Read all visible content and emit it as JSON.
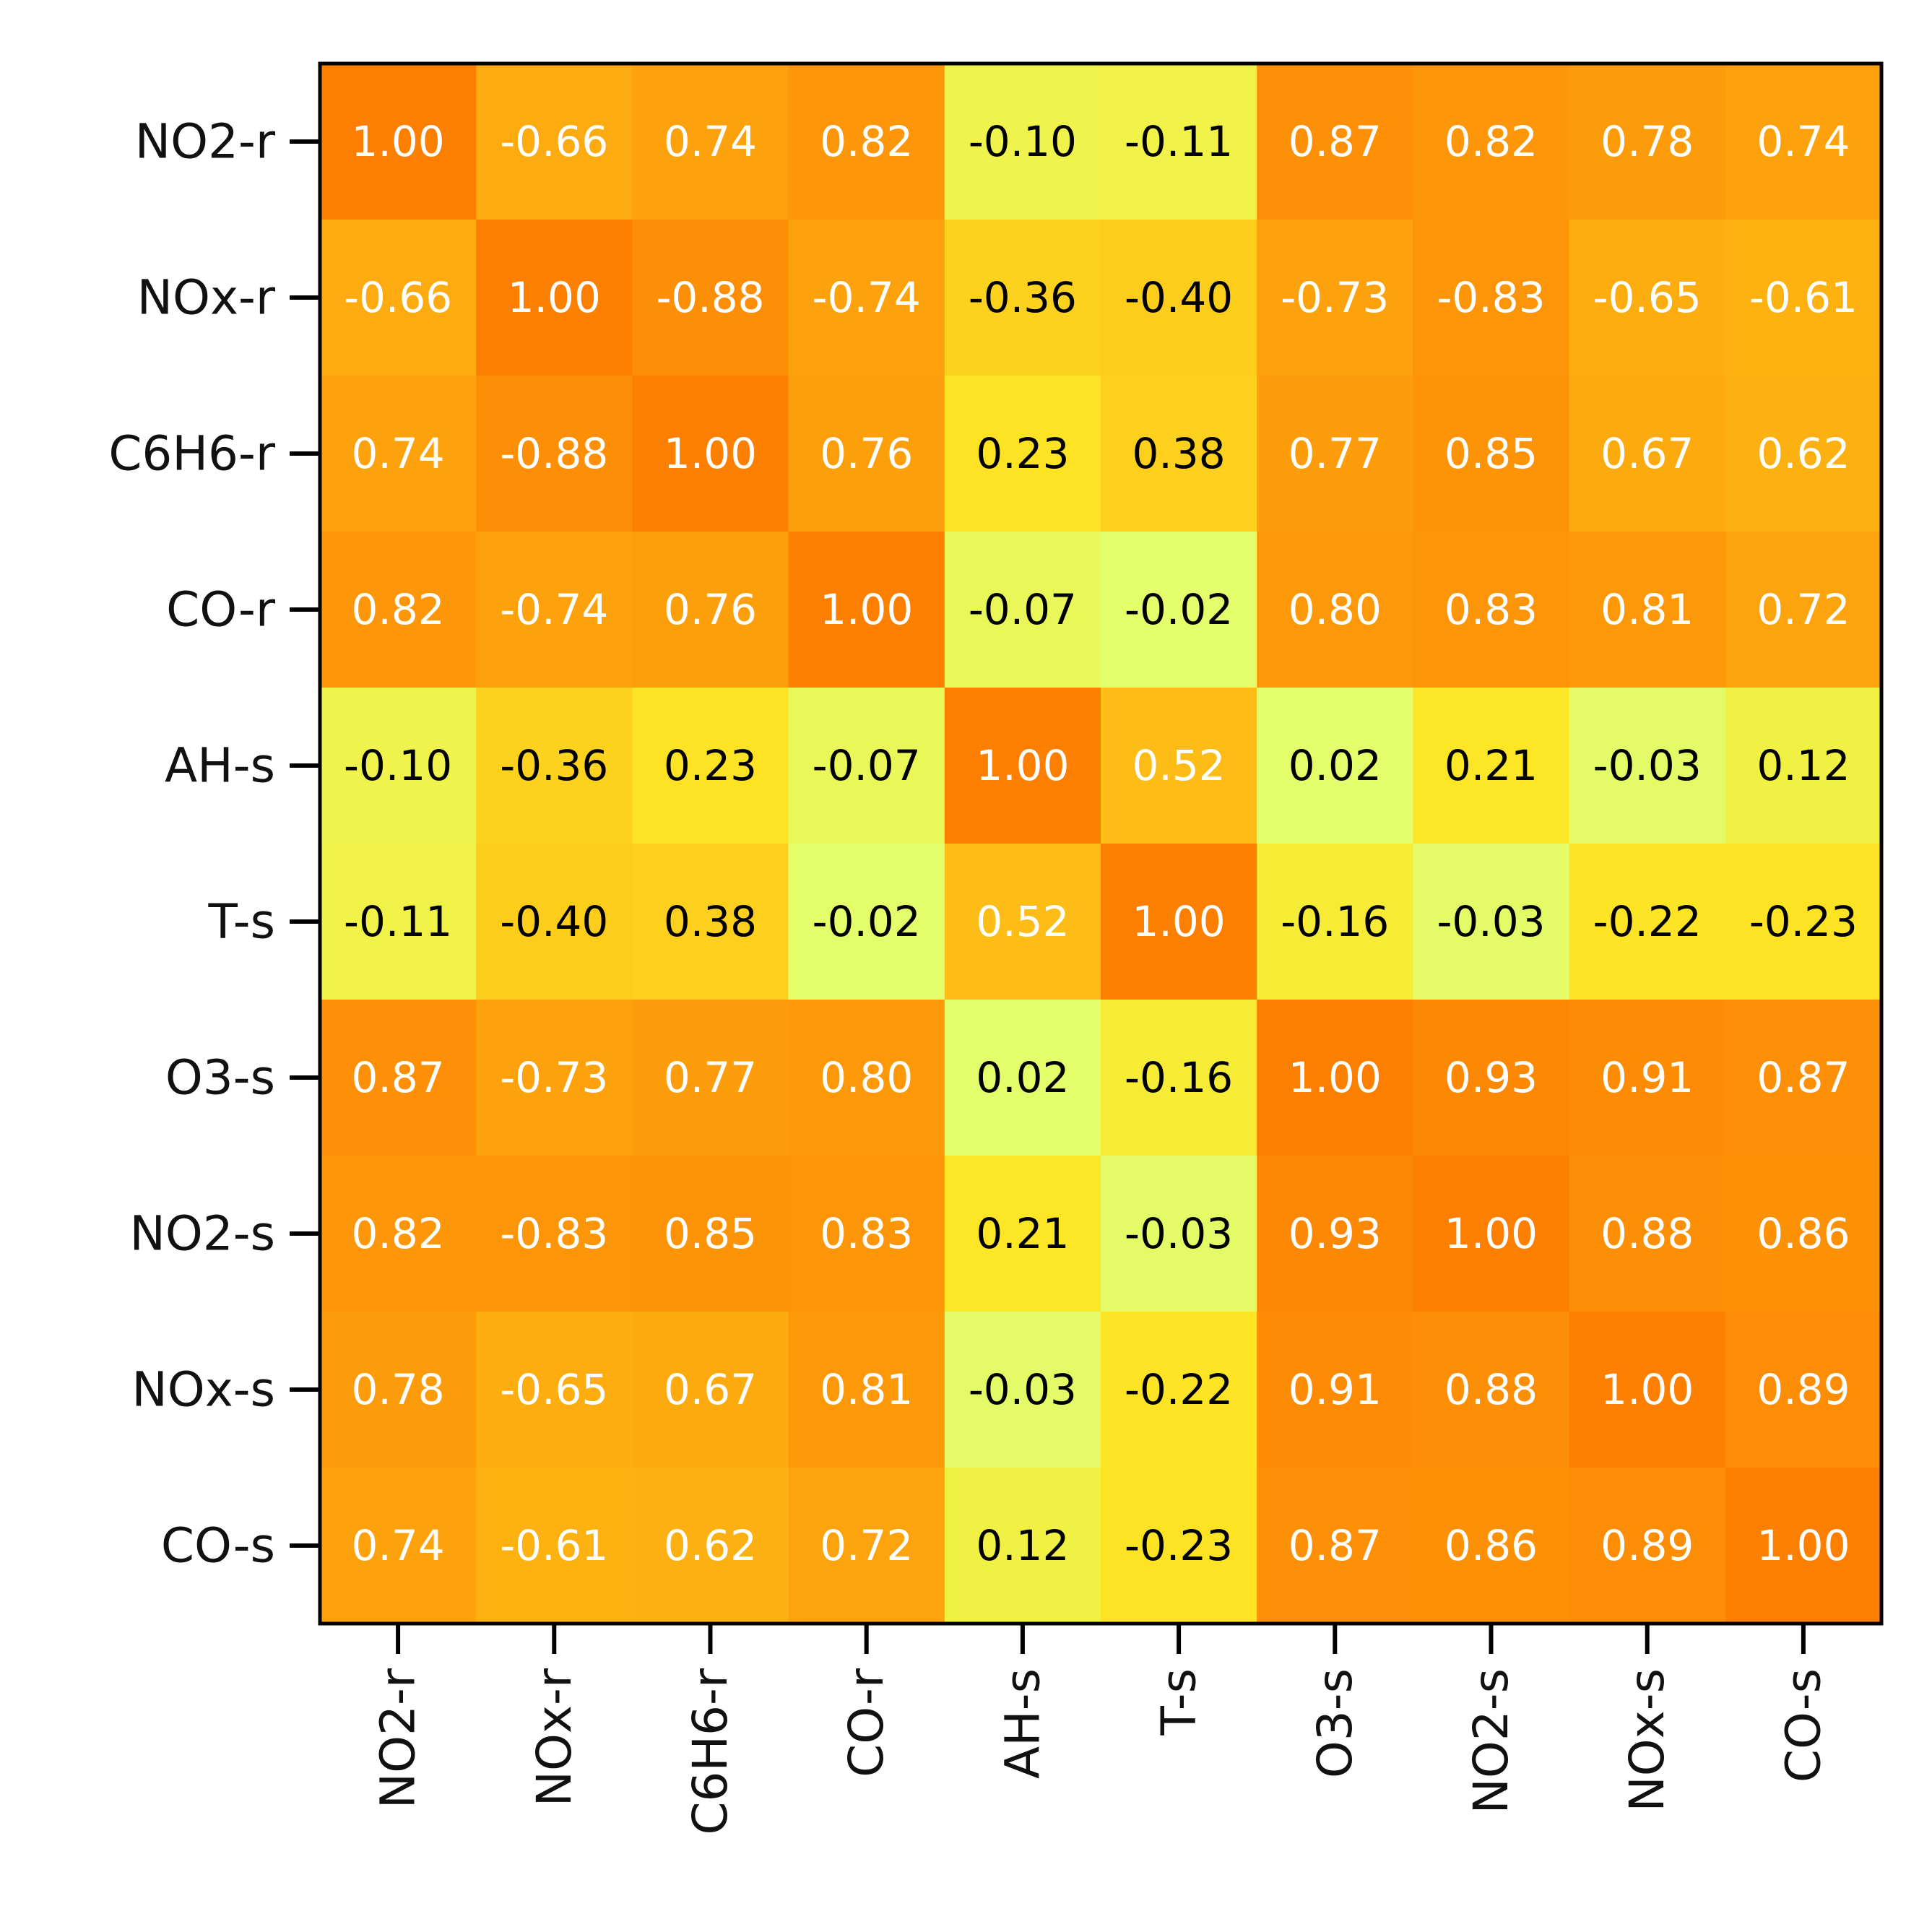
{
  "chart_data": {
    "type": "heatmap",
    "title": "",
    "xlabel": "",
    "ylabel": "",
    "labels": [
      "NO2-r",
      "NOx-r",
      "C6H6-r",
      "CO-r",
      "AH-s",
      "T-s",
      "O3-s",
      "NO2-s",
      "NOx-s",
      "CO-s"
    ],
    "values": [
      [
        "1.00",
        "-0.66",
        "0.74",
        "0.82",
        "-0.10",
        "-0.11",
        "0.87",
        "0.82",
        "0.78",
        "0.74"
      ],
      [
        "-0.66",
        "1.00",
        "-0.88",
        "-0.74",
        "-0.36",
        "-0.40",
        "-0.73",
        "-0.83",
        "-0.65",
        "-0.61"
      ],
      [
        "0.74",
        "-0.88",
        "1.00",
        "0.76",
        "0.23",
        "0.38",
        "0.77",
        "0.85",
        "0.67",
        "0.62"
      ],
      [
        "0.82",
        "-0.74",
        "0.76",
        "1.00",
        "-0.07",
        "-0.02",
        "0.80",
        "0.83",
        "0.81",
        "0.72"
      ],
      [
        "-0.10",
        "-0.36",
        "0.23",
        "-0.07",
        "1.00",
        "0.52",
        "0.02",
        "0.21",
        "-0.03",
        "0.12"
      ],
      [
        "-0.11",
        "-0.40",
        "0.38",
        "-0.02",
        "0.52",
        "1.00",
        "-0.16",
        "-0.03",
        "-0.22",
        "-0.23"
      ],
      [
        "0.87",
        "-0.73",
        "0.77",
        "0.80",
        "0.02",
        "-0.16",
        "1.00",
        "0.93",
        "0.91",
        "0.87"
      ],
      [
        "0.82",
        "-0.83",
        "0.85",
        "0.83",
        "0.21",
        "-0.03",
        "0.93",
        "1.00",
        "0.88",
        "0.86"
      ],
      [
        "0.78",
        "-0.65",
        "0.67",
        "0.81",
        "-0.03",
        "-0.22",
        "0.91",
        "0.88",
        "1.00",
        "0.89"
      ],
      [
        "0.74",
        "-0.61",
        "0.62",
        "0.72",
        "0.12",
        "-0.23",
        "0.87",
        "0.86",
        "0.89",
        "1.00"
      ]
    ],
    "color_scale": "absolute value, light yellow-green (0) to orange (1)",
    "colors": {
      "low": "#e0ff73",
      "mid": "#fde725",
      "high": "#fd7f00",
      "text_dark": "#000000",
      "text_light": "#ffffff"
    },
    "text_light_threshold": 0.5,
    "grid": false,
    "legend": "none"
  }
}
